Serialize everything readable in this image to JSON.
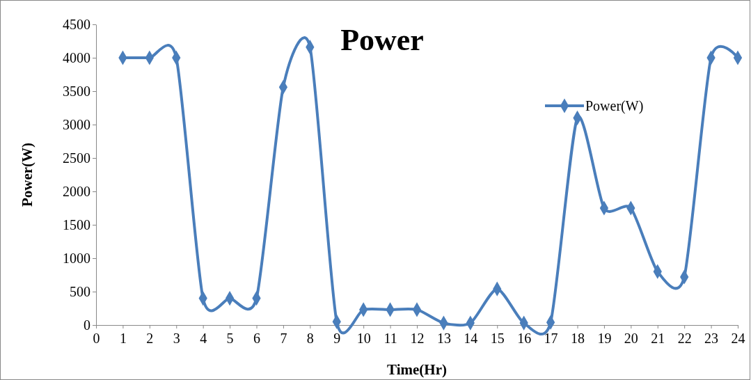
{
  "chart_data": {
    "type": "line",
    "title": "Power",
    "xlabel": "Time(Hr)",
    "ylabel": "Power(W)",
    "x": [
      1,
      2,
      3,
      4,
      5,
      6,
      7,
      8,
      9,
      10,
      11,
      12,
      13,
      14,
      15,
      16,
      17,
      18,
      19,
      20,
      21,
      22,
      23,
      24
    ],
    "series": [
      {
        "name": "Power(W)",
        "color": "#4a7ebb",
        "values": [
          4000,
          4000,
          4000,
          400,
          400,
          400,
          3560,
          4160,
          50,
          230,
          230,
          230,
          30,
          30,
          540,
          30,
          40,
          3100,
          1750,
          1750,
          800,
          720,
          4000,
          4000
        ]
      }
    ],
    "xlim": [
      0,
      24
    ],
    "xticks": [
      0,
      1,
      2,
      3,
      4,
      5,
      6,
      7,
      8,
      9,
      10,
      11,
      12,
      13,
      14,
      15,
      16,
      17,
      18,
      19,
      20,
      21,
      22,
      23,
      24
    ],
    "ylim": [
      0,
      4500
    ],
    "yticks": [
      0,
      500,
      1000,
      1500,
      2000,
      2500,
      3000,
      3500,
      4000,
      4500
    ],
    "grid": false,
    "legend": "top right",
    "marker": "diamond",
    "line_style": "solid"
  }
}
